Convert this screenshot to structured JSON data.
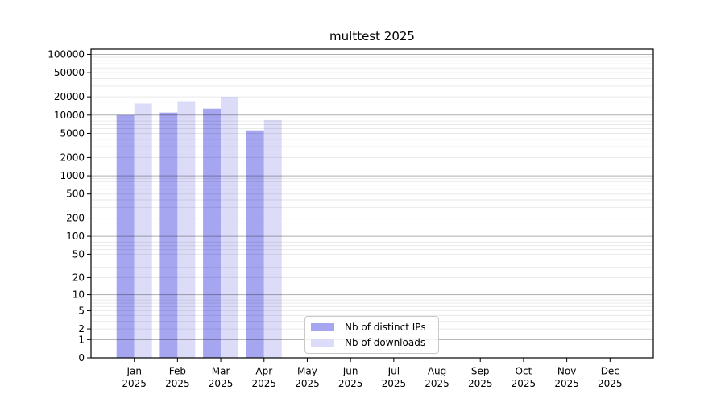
{
  "chart_data": {
    "type": "bar",
    "title": "multtest 2025",
    "y_scale": "log10(1+value)",
    "year": "2025",
    "categories": [
      "Jan",
      "Feb",
      "Mar",
      "Apr",
      "May",
      "Jun",
      "Jul",
      "Aug",
      "Sep",
      "Oct",
      "Nov",
      "Dec"
    ],
    "series": [
      {
        "name": "Nb of distinct IPs",
        "color": "#a5a5f0",
        "values": [
          10000,
          11000,
          12800,
          5600,
          0,
          0,
          0,
          0,
          0,
          0,
          0,
          0
        ]
      },
      {
        "name": "Nb of downloads",
        "color": "#dcdcf8",
        "values": [
          15500,
          17000,
          20000,
          8300,
          0,
          0,
          0,
          0,
          0,
          0,
          0,
          0
        ]
      }
    ],
    "y_ticks": [
      0,
      1,
      2,
      5,
      10,
      20,
      50,
      100,
      200,
      500,
      1000,
      2000,
      5000,
      10000,
      20000,
      50000,
      100000
    ],
    "ylim": [
      0,
      125000
    ],
    "grid": "on",
    "legend_position": "lower center",
    "colors": {
      "major_grid": "#ababab",
      "minor_grid": "#e8e8e8",
      "axis_frame": "#000000",
      "background": "#ffffff"
    }
  }
}
